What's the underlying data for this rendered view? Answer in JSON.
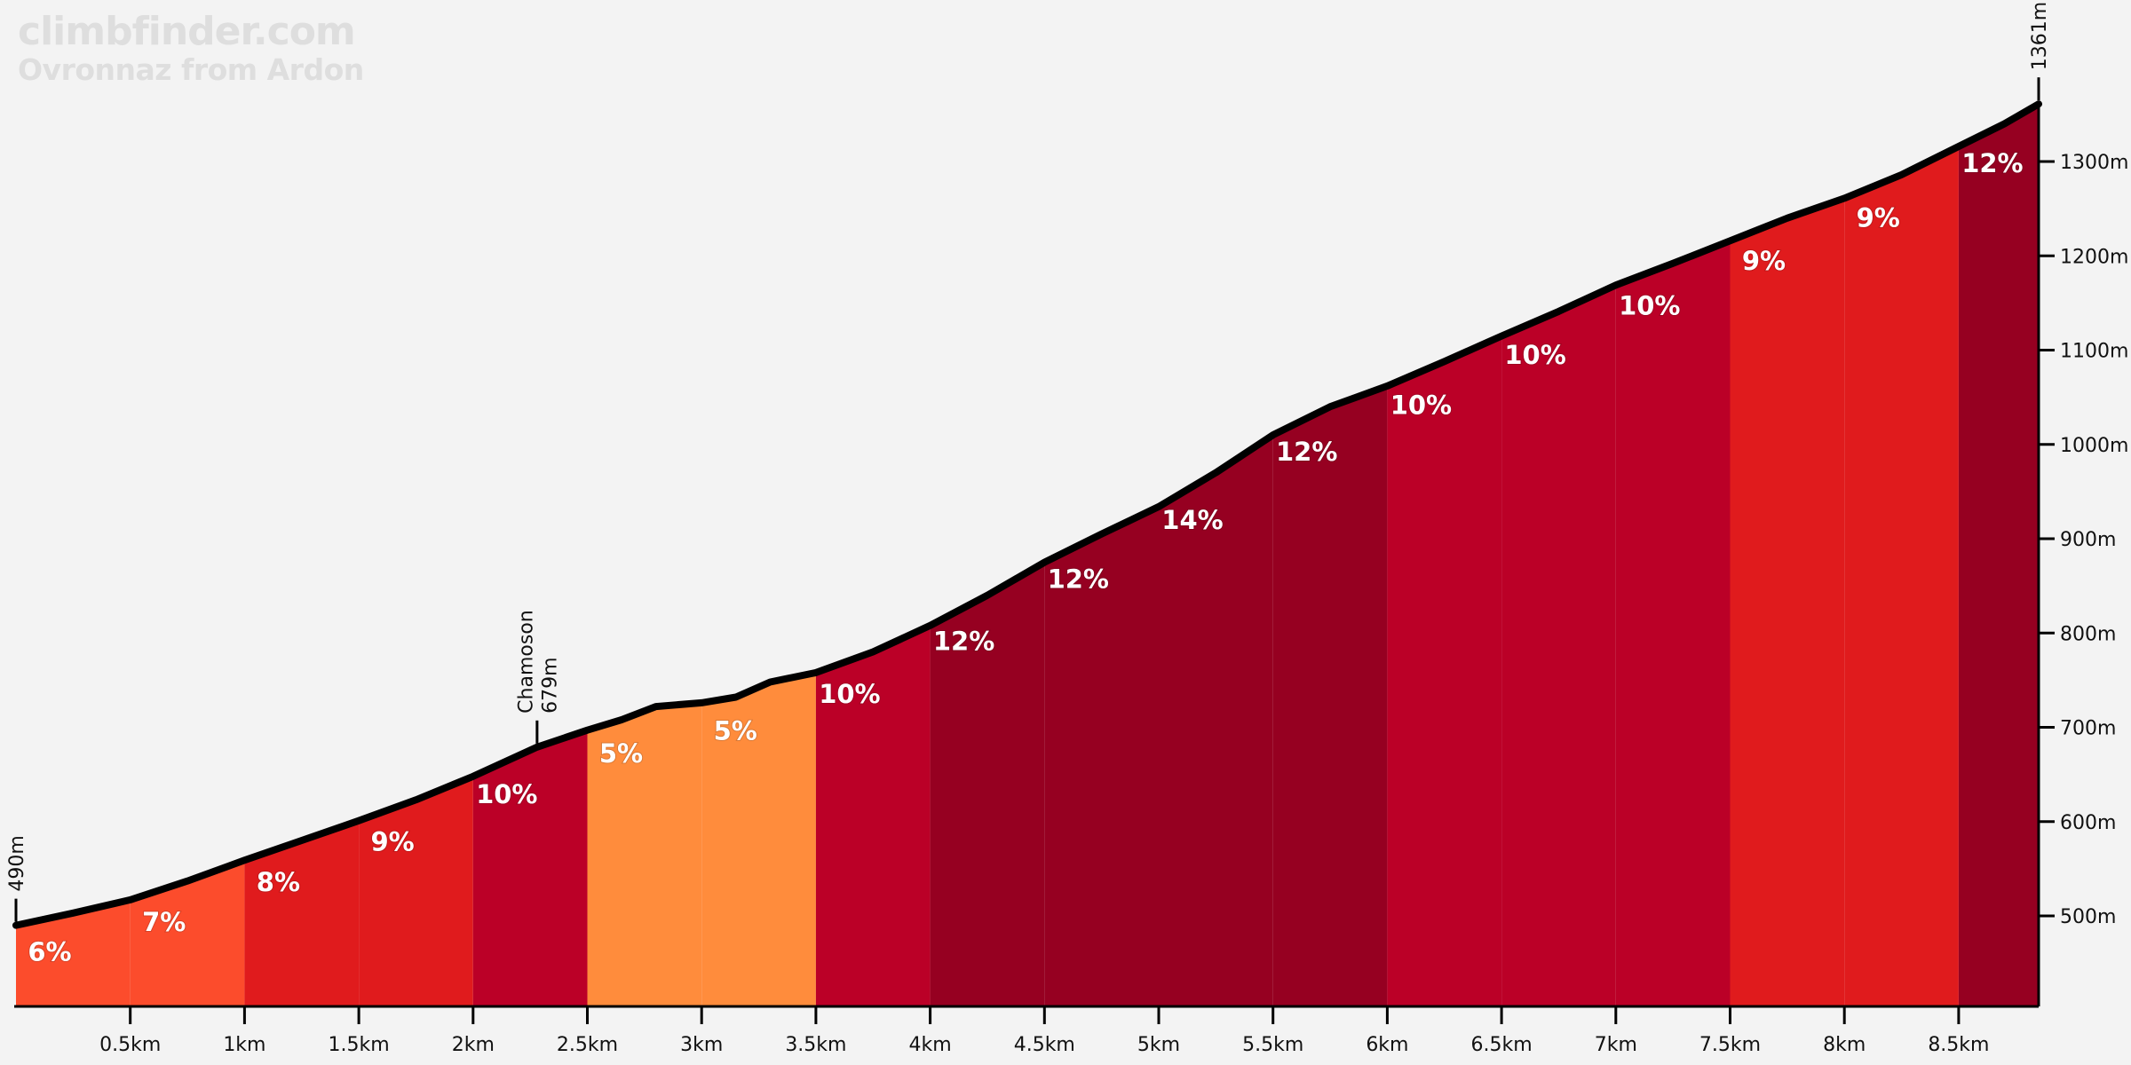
{
  "header": {
    "brand": "climbfinder.com",
    "title": "Ovronnaz from Ardon"
  },
  "chart_data": {
    "type": "area",
    "title": "Ovronnaz from Ardon",
    "xlabel": "Distance",
    "ylabel": "Elevation",
    "xlim": [
      0,
      8.85
    ],
    "ylim": [
      404,
      1361
    ],
    "profile": [
      [
        0,
        490
      ],
      [
        0.25,
        503
      ],
      [
        0.5,
        517
      ],
      [
        0.75,
        537
      ],
      [
        1,
        559
      ],
      [
        1.25,
        580
      ],
      [
        1.5,
        601
      ],
      [
        1.75,
        623
      ],
      [
        2,
        648
      ],
      [
        2.28,
        679
      ],
      [
        2.5,
        697
      ],
      [
        2.65,
        708
      ],
      [
        2.8,
        722
      ],
      [
        3,
        726
      ],
      [
        3.15,
        732
      ],
      [
        3.3,
        748
      ],
      [
        3.5,
        758
      ],
      [
        3.75,
        780
      ],
      [
        4,
        808
      ],
      [
        4.25,
        840
      ],
      [
        4.5,
        875
      ],
      [
        4.75,
        905
      ],
      [
        5,
        934
      ],
      [
        5.25,
        970
      ],
      [
        5.5,
        1010
      ],
      [
        5.75,
        1040
      ],
      [
        6,
        1062
      ],
      [
        6.25,
        1088
      ],
      [
        6.5,
        1115
      ],
      [
        6.75,
        1141
      ],
      [
        7,
        1169
      ],
      [
        7.25,
        1192
      ],
      [
        7.5,
        1216
      ],
      [
        7.75,
        1240
      ],
      [
        8,
        1261
      ],
      [
        8.25,
        1286
      ],
      [
        8.5,
        1316
      ],
      [
        8.7,
        1340
      ],
      [
        8.85,
        1361
      ]
    ],
    "segments": [
      {
        "start": 0,
        "end": 0.5,
        "grade": "6%",
        "color": "#fc4c2c"
      },
      {
        "start": 0.5,
        "end": 1,
        "grade": "7%",
        "color": "#fc4c2c"
      },
      {
        "start": 1,
        "end": 1.5,
        "grade": "8%",
        "color": "#e01b1d"
      },
      {
        "start": 1.5,
        "end": 2,
        "grade": "9%",
        "color": "#e01b1d"
      },
      {
        "start": 2,
        "end": 2.5,
        "grade": "10%",
        "color": "#bb0027"
      },
      {
        "start": 2.5,
        "end": 3,
        "grade": "5%",
        "color": "#ff8c3c"
      },
      {
        "start": 3,
        "end": 3.5,
        "grade": "5%",
        "color": "#ff8c3c"
      },
      {
        "start": 3.5,
        "end": 4,
        "grade": "10%",
        "color": "#bb0027"
      },
      {
        "start": 4,
        "end": 4.5,
        "grade": "12%",
        "color": "#960021"
      },
      {
        "start": 4.5,
        "end": 5,
        "grade": "12%",
        "color": "#960021"
      },
      {
        "start": 5,
        "end": 5.5,
        "grade": "14%",
        "color": "#960021"
      },
      {
        "start": 5.5,
        "end": 6,
        "grade": "12%",
        "color": "#960021"
      },
      {
        "start": 6,
        "end": 6.5,
        "grade": "10%",
        "color": "#bb0027"
      },
      {
        "start": 6.5,
        "end": 7,
        "grade": "10%",
        "color": "#bb0027"
      },
      {
        "start": 7,
        "end": 7.5,
        "grade": "10%",
        "color": "#bb0027"
      },
      {
        "start": 7.5,
        "end": 8,
        "grade": "9%",
        "color": "#e01b1d"
      },
      {
        "start": 8,
        "end": 8.5,
        "grade": "9%",
        "color": "#e01b1d"
      },
      {
        "start": 8.5,
        "end": 8.85,
        "grade": "12%",
        "color": "#960021"
      }
    ],
    "x_ticks": [
      {
        "v": 0.5,
        "label": "0.5km"
      },
      {
        "v": 1,
        "label": "1km"
      },
      {
        "v": 1.5,
        "label": "1.5km"
      },
      {
        "v": 2,
        "label": "2km"
      },
      {
        "v": 2.5,
        "label": "2.5km"
      },
      {
        "v": 3,
        "label": "3km"
      },
      {
        "v": 3.5,
        "label": "3.5km"
      },
      {
        "v": 4,
        "label": "4km"
      },
      {
        "v": 4.5,
        "label": "4.5km"
      },
      {
        "v": 5,
        "label": "5km"
      },
      {
        "v": 5.5,
        "label": "5.5km"
      },
      {
        "v": 6,
        "label": "6km"
      },
      {
        "v": 6.5,
        "label": "6.5km"
      },
      {
        "v": 7,
        "label": "7km"
      },
      {
        "v": 7.5,
        "label": "7.5km"
      },
      {
        "v": 8,
        "label": "8km"
      },
      {
        "v": 8.5,
        "label": "8.5km"
      }
    ],
    "y_ticks": [
      {
        "v": 500,
        "label": "500m"
      },
      {
        "v": 600,
        "label": "600m"
      },
      {
        "v": 700,
        "label": "700m"
      },
      {
        "v": 800,
        "label": "800m"
      },
      {
        "v": 900,
        "label": "900m"
      },
      {
        "v": 1000,
        "label": "1000m"
      },
      {
        "v": 1100,
        "label": "1100m"
      },
      {
        "v": 1200,
        "label": "1200m"
      },
      {
        "v": 1300,
        "label": "1300m"
      }
    ],
    "markers": [
      {
        "x": 0,
        "elev": 490,
        "lines": [
          "490m"
        ]
      },
      {
        "x": 2.28,
        "elev": 679,
        "lines": [
          "Chamoson",
          "679m"
        ]
      },
      {
        "x": 8.85,
        "elev": 1361,
        "lines": [
          "1361m"
        ]
      }
    ]
  }
}
